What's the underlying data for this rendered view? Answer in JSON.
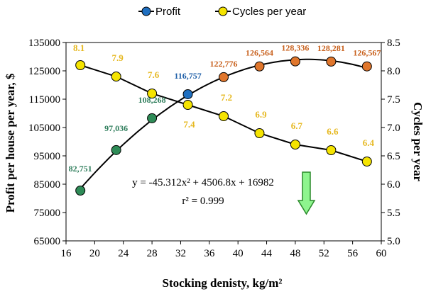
{
  "chart_data": {
    "type": "line",
    "title": "",
    "xlabel": "Stocking denisty, kg/m²",
    "ylabel": "Profit per house per year, $",
    "y2label": "Cycles per year",
    "xlim": [
      16,
      60
    ],
    "xticks": [
      "16",
      "20",
      "24",
      "28",
      "32",
      "36",
      "40",
      "44",
      "48",
      "52",
      "56",
      "60"
    ],
    "ylim": [
      65000,
      135000
    ],
    "yticks": [
      "65000",
      "75000",
      "85000",
      "95000",
      "105000",
      "115000",
      "125000",
      "135000"
    ],
    "y2lim": [
      5.0,
      8.5
    ],
    "y2ticks": [
      "5.0",
      "5.5",
      "6.0",
      "6.5",
      "7.0",
      "7.5",
      "8.0",
      "8.5"
    ],
    "grid": false,
    "legend_position": "top",
    "x": [
      18,
      23,
      28,
      33,
      38,
      43,
      48,
      53,
      58
    ],
    "series": [
      {
        "name": "Profit",
        "axis": "left",
        "values": [
          82751,
          97036,
          108268,
          116757,
          122776,
          126564,
          128336,
          128281,
          126567
        ],
        "labels": [
          "82,751",
          "97,036",
          "108,268",
          "116,757",
          "122,776",
          "126,564",
          "128,336",
          "128,281",
          "126,567"
        ],
        "color": "#1f6fc0",
        "point_colors": [
          "#2e8b57",
          "#2e8b57",
          "#2e8b57",
          "#1f6fc0",
          "#e0762c",
          "#e0762c",
          "#e0762c",
          "#e0762c",
          "#e0762c"
        ],
        "label_colors": [
          "#2e7d5b",
          "#2e7d5b",
          "#2e7d5b",
          "#1f5fa8",
          "#c8601c",
          "#c8601c",
          "#c8601c",
          "#c8601c",
          "#c8601c"
        ]
      },
      {
        "name": "Cycles per year",
        "axis": "right",
        "values": [
          8.1,
          7.9,
          7.6,
          7.4,
          7.2,
          6.9,
          6.7,
          6.6,
          6.4
        ],
        "labels": [
          "8.1",
          "7.9",
          "7.6",
          "7.4",
          "7.2",
          "6.9",
          "6.7",
          "6.6",
          "6.4"
        ],
        "color": "#f5e400",
        "label_color": "#e6b820"
      }
    ],
    "equation": "y = -45.312x² + 4506.8x + 16982",
    "r_squared": "r² = 0.999",
    "arrow_color": "#8ef58e",
    "line_color": "#000000"
  }
}
